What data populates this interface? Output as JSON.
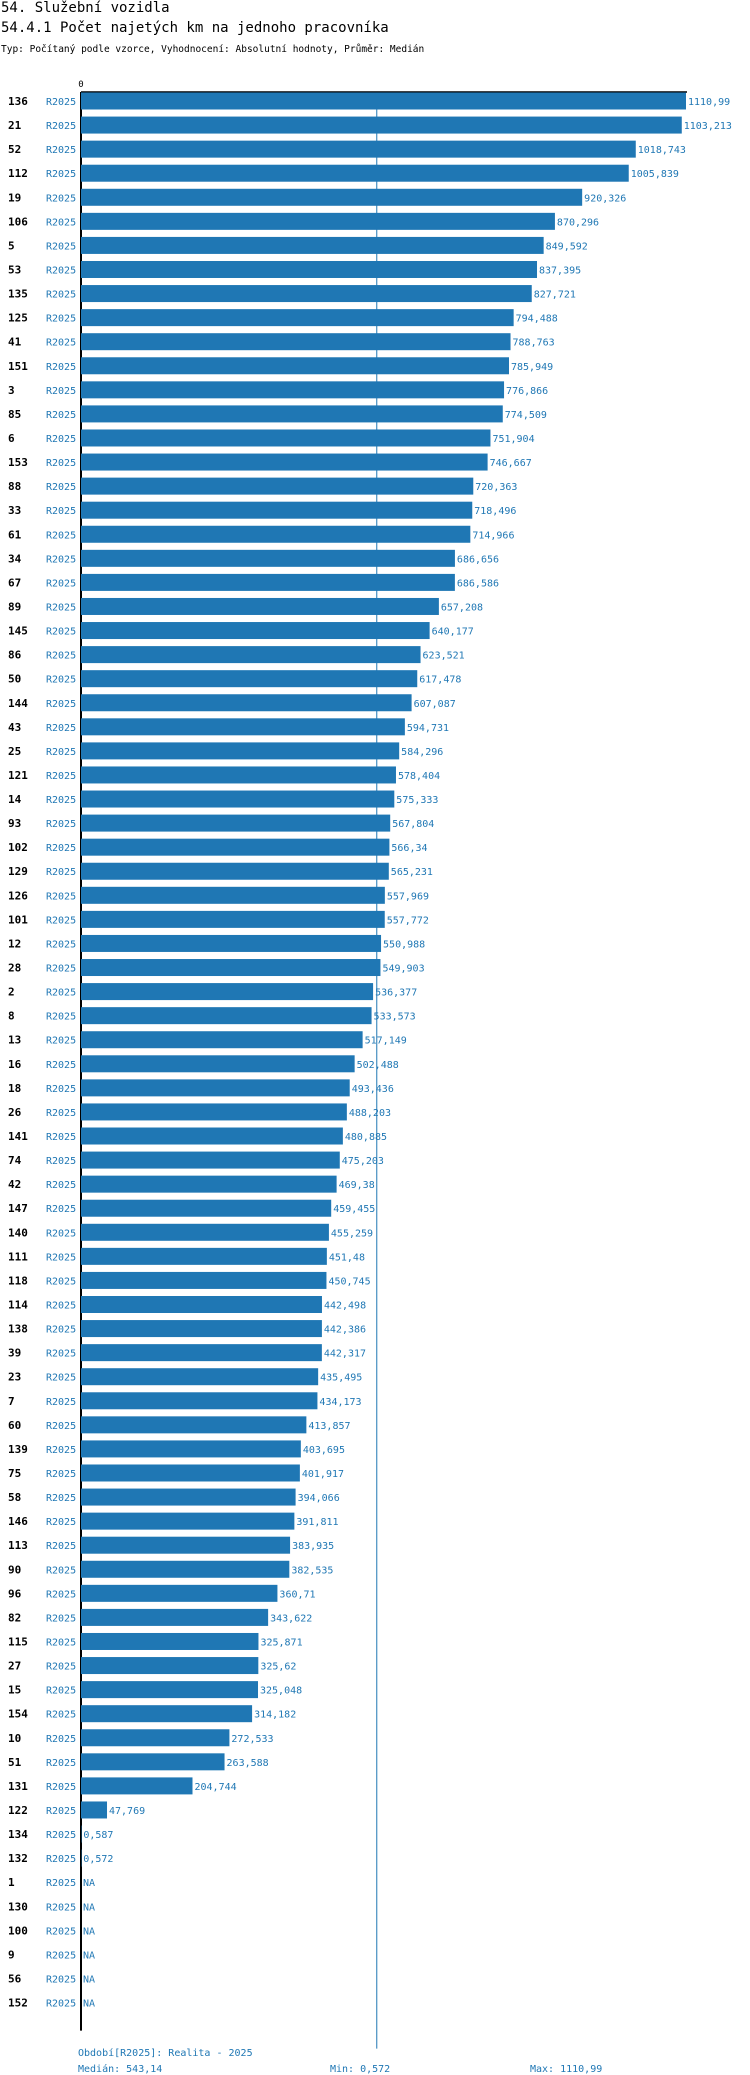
{
  "header": {
    "title": "54. Služební vozidla",
    "subtitle": "54.4.1 Počet najetých km na jednoho pracovníka",
    "info": "Typ: Počítaný podle vzorce, Vyhodnocení: Absolutní hodnoty, Průměr: Medián"
  },
  "colors": {
    "bar": "#1f77b4",
    "label": "#1f77b4",
    "axis": "#000000",
    "median_line": "#1f77b4"
  },
  "chart_data": {
    "type": "bar",
    "orientation": "horizontal",
    "series": [
      {
        "values": [
          1110.99,
          1103.213,
          1018.743,
          1005.839,
          920.326,
          870.296,
          849.592,
          837.395,
          827.721,
          794.488,
          788.763,
          785.949,
          776.866,
          774.509,
          751.904,
          746.667,
          720.363,
          718.496,
          714.966,
          686.656,
          686.586,
          657.208,
          640.177,
          623.521,
          617.478,
          607.087,
          594.731,
          584.296,
          578.404,
          575.333,
          567.804,
          566.34,
          565.231,
          557.969,
          557.772,
          550.988,
          549.903,
          536.377,
          533.573,
          517.149,
          502.488,
          493.436,
          488.203,
          480.885,
          475.203,
          469.38,
          459.455,
          455.259,
          451.48,
          450.745,
          442.498,
          442.386,
          442.317,
          435.495,
          434.173,
          413.857,
          403.695,
          401.917,
          394.066,
          391.811,
          383.935,
          382.535,
          360.71,
          343.622,
          325.871,
          325.62,
          325.048,
          314.182,
          272.533,
          263.588,
          204.744,
          47.769,
          0.587,
          0.572,
          null,
          null,
          null,
          null,
          null,
          null
        ]
      }
    ],
    "rows": [
      {
        "id": "136",
        "period": "R2025",
        "value": 1110.99,
        "label": "1110,99"
      },
      {
        "id": "21",
        "period": "R2025",
        "value": 1103.213,
        "label": "1103,213"
      },
      {
        "id": "52",
        "period": "R2025",
        "value": 1018.743,
        "label": "1018,743"
      },
      {
        "id": "112",
        "period": "R2025",
        "value": 1005.839,
        "label": "1005,839"
      },
      {
        "id": "19",
        "period": "R2025",
        "value": 920.326,
        "label": "920,326"
      },
      {
        "id": "106",
        "period": "R2025",
        "value": 870.296,
        "label": "870,296"
      },
      {
        "id": "5",
        "period": "R2025",
        "value": 849.592,
        "label": "849,592"
      },
      {
        "id": "53",
        "period": "R2025",
        "value": 837.395,
        "label": "837,395"
      },
      {
        "id": "135",
        "period": "R2025",
        "value": 827.721,
        "label": "827,721"
      },
      {
        "id": "125",
        "period": "R2025",
        "value": 794.488,
        "label": "794,488"
      },
      {
        "id": "41",
        "period": "R2025",
        "value": 788.763,
        "label": "788,763"
      },
      {
        "id": "151",
        "period": "R2025",
        "value": 785.949,
        "label": "785,949"
      },
      {
        "id": "3",
        "period": "R2025",
        "value": 776.866,
        "label": "776,866"
      },
      {
        "id": "85",
        "period": "R2025",
        "value": 774.509,
        "label": "774,509"
      },
      {
        "id": "6",
        "period": "R2025",
        "value": 751.904,
        "label": "751,904"
      },
      {
        "id": "153",
        "period": "R2025",
        "value": 746.667,
        "label": "746,667"
      },
      {
        "id": "88",
        "period": "R2025",
        "value": 720.363,
        "label": "720,363"
      },
      {
        "id": "33",
        "period": "R2025",
        "value": 718.496,
        "label": "718,496"
      },
      {
        "id": "61",
        "period": "R2025",
        "value": 714.966,
        "label": "714,966"
      },
      {
        "id": "34",
        "period": "R2025",
        "value": 686.656,
        "label": "686,656"
      },
      {
        "id": "67",
        "period": "R2025",
        "value": 686.586,
        "label": "686,586"
      },
      {
        "id": "89",
        "period": "R2025",
        "value": 657.208,
        "label": "657,208"
      },
      {
        "id": "145",
        "period": "R2025",
        "value": 640.177,
        "label": "640,177"
      },
      {
        "id": "86",
        "period": "R2025",
        "value": 623.521,
        "label": "623,521"
      },
      {
        "id": "50",
        "period": "R2025",
        "value": 617.478,
        "label": "617,478"
      },
      {
        "id": "144",
        "period": "R2025",
        "value": 607.087,
        "label": "607,087"
      },
      {
        "id": "43",
        "period": "R2025",
        "value": 594.731,
        "label": "594,731"
      },
      {
        "id": "25",
        "period": "R2025",
        "value": 584.296,
        "label": "584,296"
      },
      {
        "id": "121",
        "period": "R2025",
        "value": 578.404,
        "label": "578,404"
      },
      {
        "id": "14",
        "period": "R2025",
        "value": 575.333,
        "label": "575,333"
      },
      {
        "id": "93",
        "period": "R2025",
        "value": 567.804,
        "label": "567,804"
      },
      {
        "id": "102",
        "period": "R2025",
        "value": 566.34,
        "label": "566,34"
      },
      {
        "id": "129",
        "period": "R2025",
        "value": 565.231,
        "label": "565,231"
      },
      {
        "id": "126",
        "period": "R2025",
        "value": 557.969,
        "label": "557,969"
      },
      {
        "id": "101",
        "period": "R2025",
        "value": 557.772,
        "label": "557,772"
      },
      {
        "id": "12",
        "period": "R2025",
        "value": 550.988,
        "label": "550,988"
      },
      {
        "id": "28",
        "period": "R2025",
        "value": 549.903,
        "label": "549,903"
      },
      {
        "id": "2",
        "period": "R2025",
        "value": 536.377,
        "label": "536,377"
      },
      {
        "id": "8",
        "period": "R2025",
        "value": 533.573,
        "label": "533,573"
      },
      {
        "id": "13",
        "period": "R2025",
        "value": 517.149,
        "label": "517,149"
      },
      {
        "id": "16",
        "period": "R2025",
        "value": 502.488,
        "label": "502,488"
      },
      {
        "id": "18",
        "period": "R2025",
        "value": 493.436,
        "label": "493,436"
      },
      {
        "id": "26",
        "period": "R2025",
        "value": 488.203,
        "label": "488,203"
      },
      {
        "id": "141",
        "period": "R2025",
        "value": 480.885,
        "label": "480,885"
      },
      {
        "id": "74",
        "period": "R2025",
        "value": 475.203,
        "label": "475,203"
      },
      {
        "id": "42",
        "period": "R2025",
        "value": 469.38,
        "label": "469,38"
      },
      {
        "id": "147",
        "period": "R2025",
        "value": 459.455,
        "label": "459,455"
      },
      {
        "id": "140",
        "period": "R2025",
        "value": 455.259,
        "label": "455,259"
      },
      {
        "id": "111",
        "period": "R2025",
        "value": 451.48,
        "label": "451,48"
      },
      {
        "id": "118",
        "period": "R2025",
        "value": 450.745,
        "label": "450,745"
      },
      {
        "id": "114",
        "period": "R2025",
        "value": 442.498,
        "label": "442,498"
      },
      {
        "id": "138",
        "period": "R2025",
        "value": 442.386,
        "label": "442,386"
      },
      {
        "id": "39",
        "period": "R2025",
        "value": 442.317,
        "label": "442,317"
      },
      {
        "id": "23",
        "period": "R2025",
        "value": 435.495,
        "label": "435,495"
      },
      {
        "id": "7",
        "period": "R2025",
        "value": 434.173,
        "label": "434,173"
      },
      {
        "id": "60",
        "period": "R2025",
        "value": 413.857,
        "label": "413,857"
      },
      {
        "id": "139",
        "period": "R2025",
        "value": 403.695,
        "label": "403,695"
      },
      {
        "id": "75",
        "period": "R2025",
        "value": 401.917,
        "label": "401,917"
      },
      {
        "id": "58",
        "period": "R2025",
        "value": 394.066,
        "label": "394,066"
      },
      {
        "id": "146",
        "period": "R2025",
        "value": 391.811,
        "label": "391,811"
      },
      {
        "id": "113",
        "period": "R2025",
        "value": 383.935,
        "label": "383,935"
      },
      {
        "id": "90",
        "period": "R2025",
        "value": 382.535,
        "label": "382,535"
      },
      {
        "id": "96",
        "period": "R2025",
        "value": 360.71,
        "label": "360,71"
      },
      {
        "id": "82",
        "period": "R2025",
        "value": 343.622,
        "label": "343,622"
      },
      {
        "id": "115",
        "period": "R2025",
        "value": 325.871,
        "label": "325,871"
      },
      {
        "id": "27",
        "period": "R2025",
        "value": 325.62,
        "label": "325,62"
      },
      {
        "id": "15",
        "period": "R2025",
        "value": 325.048,
        "label": "325,048"
      },
      {
        "id": "154",
        "period": "R2025",
        "value": 314.182,
        "label": "314,182"
      },
      {
        "id": "10",
        "period": "R2025",
        "value": 272.533,
        "label": "272,533"
      },
      {
        "id": "51",
        "period": "R2025",
        "value": 263.588,
        "label": "263,588"
      },
      {
        "id": "131",
        "period": "R2025",
        "value": 204.744,
        "label": "204,744"
      },
      {
        "id": "122",
        "period": "R2025",
        "value": 47.769,
        "label": "47,769"
      },
      {
        "id": "134",
        "period": "R2025",
        "value": 0.587,
        "label": "0,587"
      },
      {
        "id": "132",
        "period": "R2025",
        "value": 0.572,
        "label": "0,572"
      },
      {
        "id": "1",
        "period": "R2025",
        "value": null,
        "label": "NA"
      },
      {
        "id": "130",
        "period": "R2025",
        "value": null,
        "label": "NA"
      },
      {
        "id": "100",
        "period": "R2025",
        "value": null,
        "label": "NA"
      },
      {
        "id": "9",
        "period": "R2025",
        "value": null,
        "label": "NA"
      },
      {
        "id": "56",
        "period": "R2025",
        "value": null,
        "label": "NA"
      },
      {
        "id": "152",
        "period": "R2025",
        "value": null,
        "label": "NA"
      }
    ],
    "xlim": [
      0,
      1110.99
    ],
    "x_tick_labels": [
      "0"
    ],
    "median": 543.14,
    "grid": false,
    "legend": "none"
  },
  "footer": {
    "period": "Období[R2025]: Realita - 2025",
    "median": "Medián: 543,14",
    "min": "Min: 0,572",
    "max": "Max: 1110,99"
  }
}
